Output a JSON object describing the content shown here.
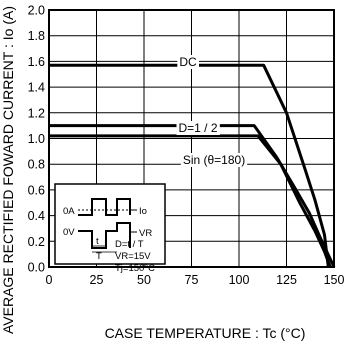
{
  "chart_data": {
    "type": "line",
    "xlabel": "CASE TEMPERATURE : Tc (°C)",
    "ylabel": "AVERAGE RECTIFIED FOWARD CURRENT : Io (A)",
    "xlim": [
      0,
      150
    ],
    "ylim": [
      0,
      2.0
    ],
    "x_ticks": [
      "0",
      "25",
      "50",
      "75",
      "100",
      "125",
      "150"
    ],
    "y_ticks": [
      "0.0",
      "0.2",
      "0.4",
      "0.6",
      "0.8",
      "1.0",
      "1.2",
      "1.4",
      "1.6",
      "1.8",
      "2.0"
    ],
    "grid": true,
    "series": [
      {
        "name": "DC",
        "x": [
          0,
          113,
          125,
          135,
          140,
          145,
          147
        ],
        "y": [
          1.57,
          1.57,
          1.2,
          0.75,
          0.52,
          0.25,
          0.0
        ]
      },
      {
        "name": "D=1 / 2",
        "x": [
          0,
          108,
          120,
          130,
          137,
          143,
          150
        ],
        "y": [
          1.1,
          1.1,
          0.85,
          0.6,
          0.42,
          0.22,
          0.0
        ]
      },
      {
        "name": "Sin (θ=180)",
        "x": [
          0,
          110,
          122,
          132,
          140,
          145,
          148
        ],
        "y": [
          1.02,
          1.02,
          0.8,
          0.5,
          0.28,
          0.12,
          0.0
        ]
      }
    ]
  },
  "inset": {
    "lines": [
      "D=t / T",
      "VR=15V",
      "Tj=150°C"
    ],
    "zero_a": "0A",
    "zero_v": "0V",
    "io": "Io",
    "vr": "VR",
    "t": "t",
    "T": "T"
  }
}
